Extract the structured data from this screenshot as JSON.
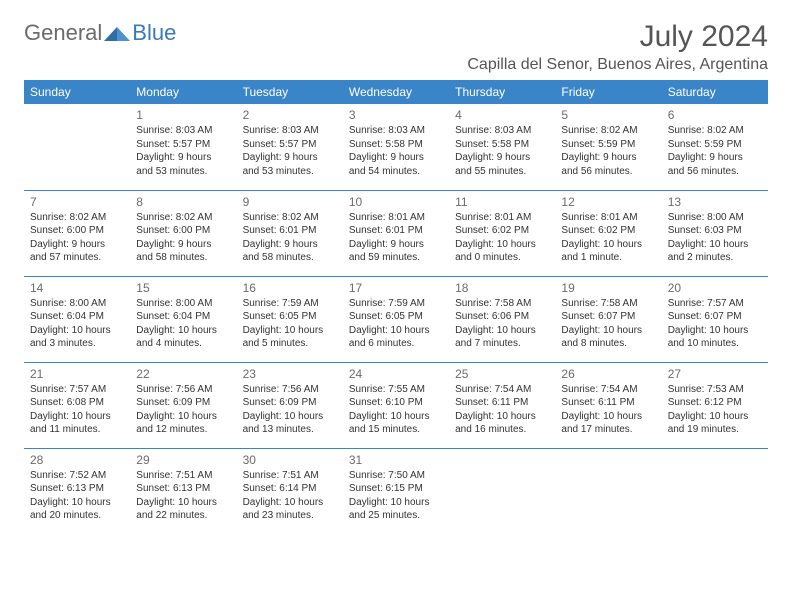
{
  "logo": {
    "general": "General",
    "blue": "Blue"
  },
  "title": "July 2024",
  "location": "Capilla del Senor, Buenos Aires, Argentina",
  "colors": {
    "header_bg": "#3a85c7",
    "header_text": "#ffffff",
    "rule": "#3a85c7",
    "body_text": "#333333",
    "muted": "#6b6b6b",
    "logo_gray": "#6b6b6b",
    "logo_blue": "#3a7ab8",
    "background": "#ffffff"
  },
  "weekdays": [
    "Sunday",
    "Monday",
    "Tuesday",
    "Wednesday",
    "Thursday",
    "Friday",
    "Saturday"
  ],
  "weeks": [
    [
      null,
      {
        "n": "1",
        "sr": "Sunrise: 8:03 AM",
        "ss": "Sunset: 5:57 PM",
        "dl": "Daylight: 9 hours and 53 minutes."
      },
      {
        "n": "2",
        "sr": "Sunrise: 8:03 AM",
        "ss": "Sunset: 5:57 PM",
        "dl": "Daylight: 9 hours and 53 minutes."
      },
      {
        "n": "3",
        "sr": "Sunrise: 8:03 AM",
        "ss": "Sunset: 5:58 PM",
        "dl": "Daylight: 9 hours and 54 minutes."
      },
      {
        "n": "4",
        "sr": "Sunrise: 8:03 AM",
        "ss": "Sunset: 5:58 PM",
        "dl": "Daylight: 9 hours and 55 minutes."
      },
      {
        "n": "5",
        "sr": "Sunrise: 8:02 AM",
        "ss": "Sunset: 5:59 PM",
        "dl": "Daylight: 9 hours and 56 minutes."
      },
      {
        "n": "6",
        "sr": "Sunrise: 8:02 AM",
        "ss": "Sunset: 5:59 PM",
        "dl": "Daylight: 9 hours and 56 minutes."
      }
    ],
    [
      {
        "n": "7",
        "sr": "Sunrise: 8:02 AM",
        "ss": "Sunset: 6:00 PM",
        "dl": "Daylight: 9 hours and 57 minutes."
      },
      {
        "n": "8",
        "sr": "Sunrise: 8:02 AM",
        "ss": "Sunset: 6:00 PM",
        "dl": "Daylight: 9 hours and 58 minutes."
      },
      {
        "n": "9",
        "sr": "Sunrise: 8:02 AM",
        "ss": "Sunset: 6:01 PM",
        "dl": "Daylight: 9 hours and 58 minutes."
      },
      {
        "n": "10",
        "sr": "Sunrise: 8:01 AM",
        "ss": "Sunset: 6:01 PM",
        "dl": "Daylight: 9 hours and 59 minutes."
      },
      {
        "n": "11",
        "sr": "Sunrise: 8:01 AM",
        "ss": "Sunset: 6:02 PM",
        "dl": "Daylight: 10 hours and 0 minutes."
      },
      {
        "n": "12",
        "sr": "Sunrise: 8:01 AM",
        "ss": "Sunset: 6:02 PM",
        "dl": "Daylight: 10 hours and 1 minute."
      },
      {
        "n": "13",
        "sr": "Sunrise: 8:00 AM",
        "ss": "Sunset: 6:03 PM",
        "dl": "Daylight: 10 hours and 2 minutes."
      }
    ],
    [
      {
        "n": "14",
        "sr": "Sunrise: 8:00 AM",
        "ss": "Sunset: 6:04 PM",
        "dl": "Daylight: 10 hours and 3 minutes."
      },
      {
        "n": "15",
        "sr": "Sunrise: 8:00 AM",
        "ss": "Sunset: 6:04 PM",
        "dl": "Daylight: 10 hours and 4 minutes."
      },
      {
        "n": "16",
        "sr": "Sunrise: 7:59 AM",
        "ss": "Sunset: 6:05 PM",
        "dl": "Daylight: 10 hours and 5 minutes."
      },
      {
        "n": "17",
        "sr": "Sunrise: 7:59 AM",
        "ss": "Sunset: 6:05 PM",
        "dl": "Daylight: 10 hours and 6 minutes."
      },
      {
        "n": "18",
        "sr": "Sunrise: 7:58 AM",
        "ss": "Sunset: 6:06 PM",
        "dl": "Daylight: 10 hours and 7 minutes."
      },
      {
        "n": "19",
        "sr": "Sunrise: 7:58 AM",
        "ss": "Sunset: 6:07 PM",
        "dl": "Daylight: 10 hours and 8 minutes."
      },
      {
        "n": "20",
        "sr": "Sunrise: 7:57 AM",
        "ss": "Sunset: 6:07 PM",
        "dl": "Daylight: 10 hours and 10 minutes."
      }
    ],
    [
      {
        "n": "21",
        "sr": "Sunrise: 7:57 AM",
        "ss": "Sunset: 6:08 PM",
        "dl": "Daylight: 10 hours and 11 minutes."
      },
      {
        "n": "22",
        "sr": "Sunrise: 7:56 AM",
        "ss": "Sunset: 6:09 PM",
        "dl": "Daylight: 10 hours and 12 minutes."
      },
      {
        "n": "23",
        "sr": "Sunrise: 7:56 AM",
        "ss": "Sunset: 6:09 PM",
        "dl": "Daylight: 10 hours and 13 minutes."
      },
      {
        "n": "24",
        "sr": "Sunrise: 7:55 AM",
        "ss": "Sunset: 6:10 PM",
        "dl": "Daylight: 10 hours and 15 minutes."
      },
      {
        "n": "25",
        "sr": "Sunrise: 7:54 AM",
        "ss": "Sunset: 6:11 PM",
        "dl": "Daylight: 10 hours and 16 minutes."
      },
      {
        "n": "26",
        "sr": "Sunrise: 7:54 AM",
        "ss": "Sunset: 6:11 PM",
        "dl": "Daylight: 10 hours and 17 minutes."
      },
      {
        "n": "27",
        "sr": "Sunrise: 7:53 AM",
        "ss": "Sunset: 6:12 PM",
        "dl": "Daylight: 10 hours and 19 minutes."
      }
    ],
    [
      {
        "n": "28",
        "sr": "Sunrise: 7:52 AM",
        "ss": "Sunset: 6:13 PM",
        "dl": "Daylight: 10 hours and 20 minutes."
      },
      {
        "n": "29",
        "sr": "Sunrise: 7:51 AM",
        "ss": "Sunset: 6:13 PM",
        "dl": "Daylight: 10 hours and 22 minutes."
      },
      {
        "n": "30",
        "sr": "Sunrise: 7:51 AM",
        "ss": "Sunset: 6:14 PM",
        "dl": "Daylight: 10 hours and 23 minutes."
      },
      {
        "n": "31",
        "sr": "Sunrise: 7:50 AM",
        "ss": "Sunset: 6:15 PM",
        "dl": "Daylight: 10 hours and 25 minutes."
      },
      null,
      null,
      null
    ]
  ]
}
